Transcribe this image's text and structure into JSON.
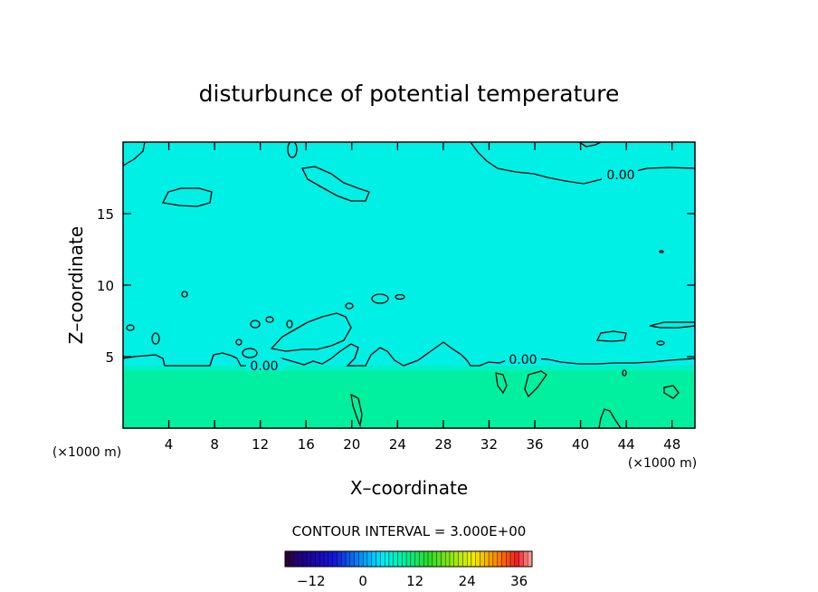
{
  "chart_data": {
    "type": "heatmap",
    "title": "disturbunce of potential temperature",
    "xlabel": "X–coordinate",
    "ylabel": "Z–coordinate",
    "x_unit": "(×1000 m)",
    "y_unit": "(×1000 m)",
    "xlim": [
      0,
      50
    ],
    "ylim": [
      0,
      20
    ],
    "x_ticks": [
      4,
      8,
      12,
      16,
      20,
      24,
      28,
      32,
      36,
      40,
      44,
      48
    ],
    "y_ticks": [
      5,
      10,
      15
    ],
    "contour_interval_text": "CONTOUR INTERVAL = 3.000E+00",
    "contour_labels": [
      "0.00",
      "0.00",
      "0.00"
    ],
    "colorbar": {
      "min": -18,
      "max": 39,
      "step": 3,
      "tick_values": [
        -12,
        0,
        12,
        24,
        36
      ],
      "tick_labels": [
        "−12",
        "0",
        "12",
        "24",
        "36"
      ]
    },
    "fields": {
      "upper_layer": {
        "z_range": [
          4.3,
          20
        ],
        "value_range": [
          0,
          3
        ],
        "color": "#00f0e6"
      },
      "lower_layer": {
        "z_range": [
          0,
          4.3
        ],
        "value_range": [
          3,
          6
        ],
        "color": "#00f0a0"
      }
    },
    "colors": {
      "upper_layer": "#00f0e6",
      "lower_layer": "#00f0a0",
      "contour": "#000000"
    }
  }
}
